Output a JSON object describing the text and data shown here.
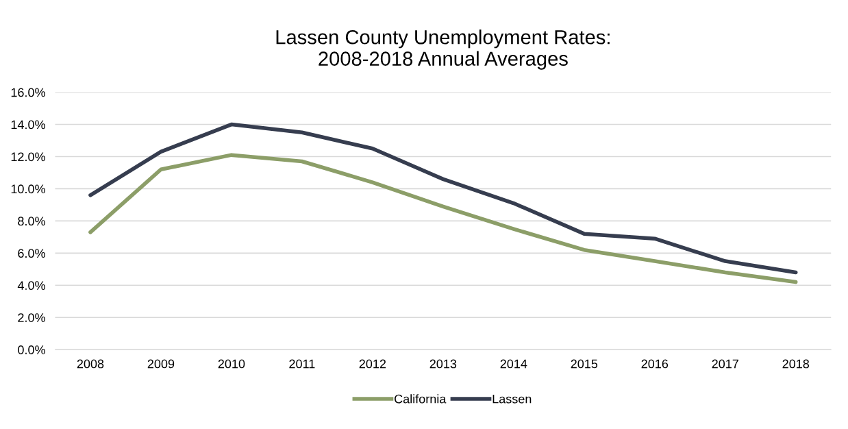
{
  "chart_data": {
    "type": "line",
    "title": "Lassen County Unemployment Rates:\n2008-2018 Annual Averages",
    "categories": [
      "2008",
      "2009",
      "2010",
      "2011",
      "2012",
      "2013",
      "2014",
      "2015",
      "2016",
      "2017",
      "2018"
    ],
    "series": [
      {
        "name": "California",
        "color": "#8c9e68",
        "values": [
          7.3,
          11.2,
          12.1,
          11.7,
          10.4,
          8.9,
          7.5,
          6.2,
          5.5,
          4.8,
          4.2
        ]
      },
      {
        "name": "Lassen",
        "color": "#363d4f",
        "values": [
          9.6,
          12.3,
          14.0,
          13.5,
          12.5,
          10.6,
          9.1,
          7.2,
          6.9,
          5.5,
          4.8
        ]
      }
    ],
    "ylim": [
      0,
      16
    ],
    "yticks": [
      {
        "value": 0,
        "label": "0.0%"
      },
      {
        "value": 2,
        "label": "2.0%"
      },
      {
        "value": 4,
        "label": "4.0%"
      },
      {
        "value": 6,
        "label": "6.0%"
      },
      {
        "value": 8,
        "label": "8.0%"
      },
      {
        "value": 10,
        "label": "10.0%"
      },
      {
        "value": 12,
        "label": "12.0%"
      },
      {
        "value": 14,
        "label": "14.0%"
      },
      {
        "value": 16,
        "label": "16.0%"
      }
    ],
    "grid": "y",
    "legend": "bottom",
    "marker": "none",
    "line_style": "solid"
  }
}
